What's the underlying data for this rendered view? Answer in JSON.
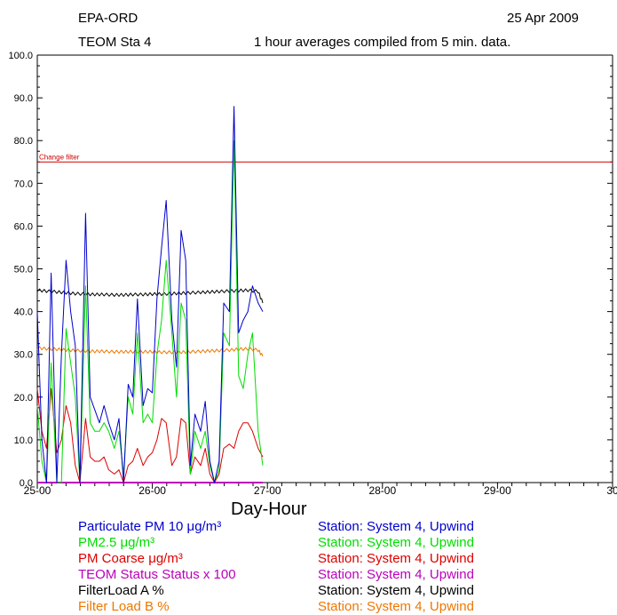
{
  "header": {
    "org": "EPA-ORD",
    "date": "25 Apr 2009",
    "station": "TEOM Sta 4",
    "note": "1 hour averages compiled from 5 min. data."
  },
  "chart_data": {
    "type": "line",
    "title": "",
    "xlabel": "Day-Hour",
    "ylabel": "",
    "xlim": [
      25,
      30
    ],
    "ylim": [
      0,
      100
    ],
    "xticks": [
      "25-00",
      "26-00",
      "27-00",
      "28-00",
      "29-00",
      "30"
    ],
    "yticks": [
      "0.0",
      "10.0",
      "20.0",
      "30.0",
      "40.0",
      "50.0",
      "60.0",
      "70.0",
      "80.0",
      "90.0",
      "100.0"
    ],
    "grid": false,
    "threshold": {
      "label": "Change filter",
      "value": 75,
      "color": "#cc0000"
    },
    "series": [
      {
        "name": "Particulate PM 10 μg/m³",
        "color": "#0000cc",
        "x": [
          25.0,
          25.04,
          25.08,
          25.12,
          25.17,
          25.21,
          25.25,
          25.29,
          25.33,
          25.37,
          25.42,
          25.46,
          25.5,
          25.54,
          25.58,
          25.62,
          25.67,
          25.71,
          25.75,
          25.79,
          25.83,
          25.87,
          25.92,
          25.96,
          26.0,
          26.04,
          26.08,
          26.12,
          26.17,
          26.21,
          26.25,
          26.29,
          26.33,
          26.37,
          26.42,
          26.46,
          26.5,
          26.54,
          26.58,
          26.62,
          26.67,
          26.71,
          26.75,
          26.79,
          26.83,
          26.87,
          26.92,
          26.96
        ],
        "y": [
          40,
          10,
          0,
          49,
          0,
          30,
          52,
          40,
          32,
          0,
          63,
          20,
          17,
          14,
          18,
          14,
          10,
          15,
          0,
          23,
          20,
          43,
          18,
          22,
          21,
          43,
          55,
          66,
          38,
          27,
          59,
          52,
          4,
          16,
          12,
          19,
          5,
          0,
          5,
          42,
          40,
          88,
          35,
          38,
          40,
          46,
          42,
          40
        ]
      },
      {
        "name": "PM2.5 μg/m³",
        "color": "#00dd00",
        "x": [
          25.0,
          25.04,
          25.08,
          25.12,
          25.17,
          25.21,
          25.25,
          25.29,
          25.33,
          25.37,
          25.42,
          25.46,
          25.5,
          25.54,
          25.58,
          25.62,
          25.67,
          25.71,
          25.75,
          25.79,
          25.83,
          25.87,
          25.92,
          25.96,
          26.0,
          26.04,
          26.08,
          26.12,
          26.17,
          26.21,
          26.25,
          26.29,
          26.33,
          26.37,
          26.42,
          26.46,
          26.5,
          26.54,
          26.58,
          26.62,
          26.67,
          26.71,
          26.75,
          26.79,
          26.83,
          26.87,
          26.92,
          26.96
        ],
        "y": [
          18,
          5,
          0,
          28,
          0,
          0,
          36,
          28,
          20,
          0,
          46,
          14,
          12,
          12,
          14,
          12,
          8,
          12,
          2,
          20,
          16,
          35,
          14,
          16,
          14,
          30,
          38,
          52,
          35,
          20,
          42,
          38,
          2,
          12,
          8,
          12,
          4,
          0,
          3,
          35,
          32,
          80,
          25,
          22,
          30,
          35,
          12,
          4
        ]
      },
      {
        "name": "PM Coarse μg/m³",
        "color": "#dd0000",
        "x": [
          25.0,
          25.04,
          25.08,
          25.12,
          25.17,
          25.21,
          25.25,
          25.29,
          25.33,
          25.37,
          25.42,
          25.46,
          25.5,
          25.54,
          25.58,
          25.62,
          25.67,
          25.71,
          25.75,
          25.79,
          25.83,
          25.87,
          25.92,
          25.96,
          26.0,
          26.04,
          26.08,
          26.12,
          26.17,
          26.21,
          26.25,
          26.29,
          26.33,
          26.37,
          26.42,
          26.46,
          26.5,
          26.54,
          26.58,
          26.62,
          26.67,
          26.71,
          26.75,
          26.79,
          26.83,
          26.87,
          26.92,
          26.96
        ],
        "y": [
          22,
          12,
          8,
          22,
          7,
          10,
          18,
          14,
          4,
          0,
          15,
          6,
          5,
          5,
          6,
          3,
          2,
          3,
          0,
          4,
          5,
          8,
          4,
          6,
          7,
          10,
          15,
          14,
          4,
          6,
          15,
          14,
          2,
          6,
          4,
          8,
          2,
          0,
          2,
          8,
          9,
          8,
          12,
          14,
          14,
          12,
          8,
          6
        ]
      },
      {
        "name": "TEOM Status Status x 100",
        "color": "#bb00bb",
        "x": [
          25.0,
          26.96
        ],
        "y": [
          0,
          0
        ]
      },
      {
        "name": "FilterLoad A %",
        "color": "#000000",
        "x": [
          25.0,
          25.08,
          25.17,
          25.25,
          25.33,
          25.42,
          25.5,
          25.58,
          25.67,
          25.75,
          25.83,
          25.92,
          26.0,
          26.08,
          26.17,
          26.25,
          26.33,
          26.42,
          26.5,
          26.58,
          26.67,
          26.75,
          26.83,
          26.92,
          26.96
        ],
        "y": [
          45.0,
          44.8,
          44.6,
          44.4,
          44.2,
          44.1,
          44.0,
          44.0,
          43.9,
          43.9,
          44.0,
          44.0,
          44.1,
          44.1,
          44.2,
          44.3,
          44.4,
          44.5,
          44.6,
          44.7,
          44.8,
          44.9,
          45.0,
          44.7,
          42.0
        ]
      },
      {
        "name": "Filter Load B %",
        "color": "#ee7700",
        "x": [
          25.0,
          25.08,
          25.17,
          25.25,
          25.33,
          25.42,
          25.5,
          25.58,
          25.67,
          25.75,
          25.83,
          25.92,
          26.0,
          26.08,
          26.17,
          26.25,
          26.33,
          26.42,
          26.5,
          26.58,
          26.67,
          26.75,
          26.83,
          26.92,
          26.96
        ],
        "y": [
          31.5,
          31.3,
          31.2,
          31.0,
          30.9,
          30.8,
          30.7,
          30.7,
          30.6,
          30.6,
          30.6,
          30.6,
          30.6,
          30.5,
          30.5,
          30.5,
          30.6,
          30.7,
          30.8,
          30.9,
          31.0,
          31.2,
          31.3,
          31.0,
          29.5
        ]
      }
    ]
  },
  "legend": [
    {
      "name": "Particulate PM 10  μg/m³",
      "station": "Station: System 4, Upwind",
      "color": "#0000cc"
    },
    {
      "name": "PM2.5  μg/m³",
      "station": "Station: System 4, Upwind",
      "color": "#00dd00"
    },
    {
      "name": "PM Coarse  μg/m³",
      "station": "Station: System 4, Upwind",
      "color": "#dd0000"
    },
    {
      "name": "TEOM Status  Status x 100",
      "station": "Station: System 4, Upwind",
      "color": "#bb00bb"
    },
    {
      "name": "FilterLoad  A  %",
      "station": "Station: System 4, Upwind",
      "color": "#000000"
    },
    {
      "name": "Filter Load B  %",
      "station": "Station: System 4, Upwind",
      "color": "#ee7700"
    }
  ]
}
